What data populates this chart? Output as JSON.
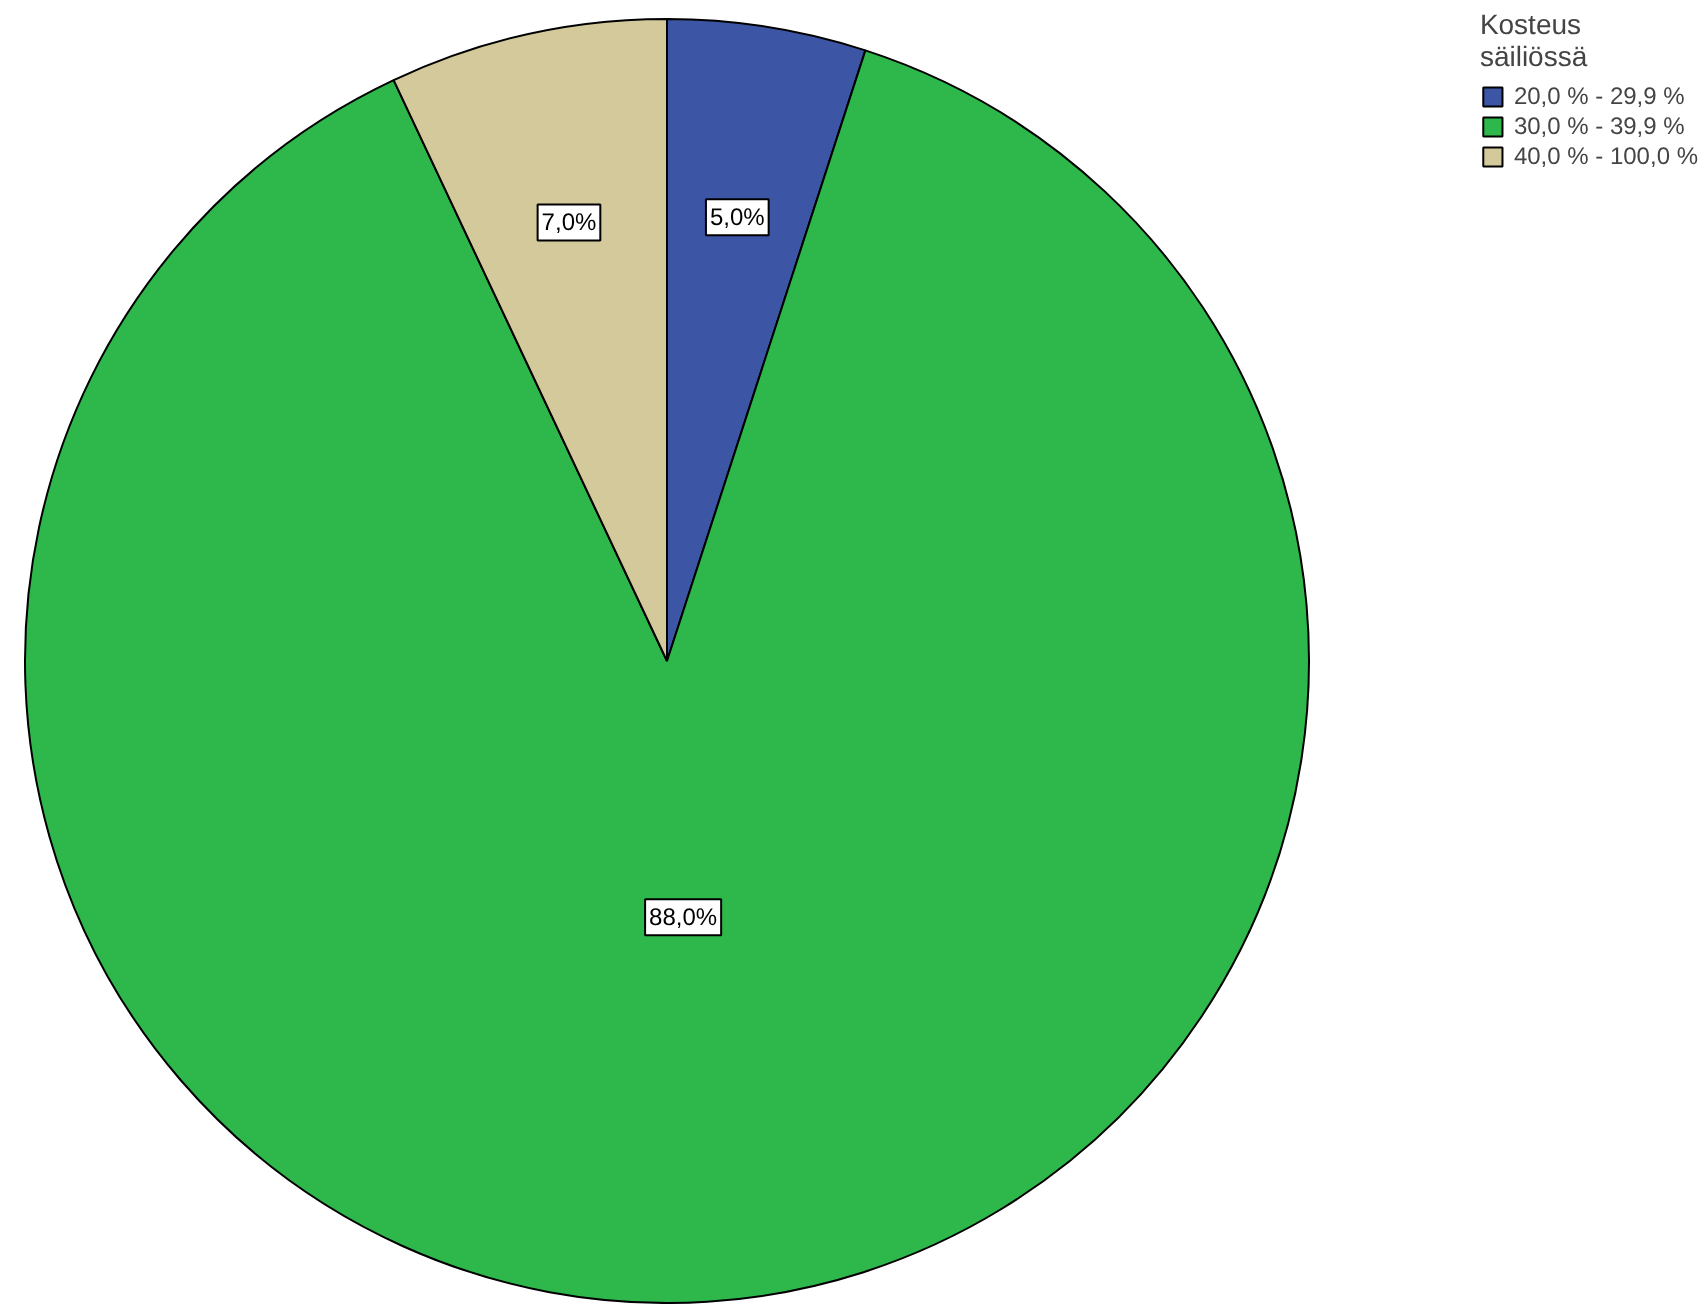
{
  "chart_data": {
    "type": "pie",
    "legend_title": "Kosteus\nsäiliössä",
    "legend": "top right",
    "categories": [
      "20,0 % - 29,9 %",
      "30,0 % - 39,9 %",
      "40,0 % - 100,0 %"
    ],
    "values": [
      5,
      88,
      7
    ],
    "colors": [
      "#3c55a5",
      "#2eb84b",
      "#d4c99a"
    ],
    "value_labels": [
      "5,0%",
      "88,0%",
      "7,0%"
    ]
  }
}
